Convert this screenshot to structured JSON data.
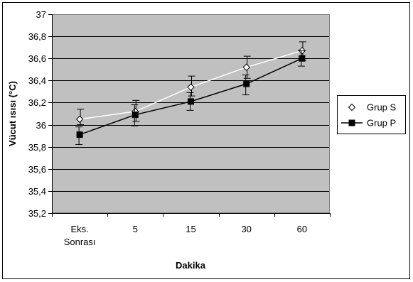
{
  "chart_data": {
    "type": "line",
    "categories": [
      [
        "Eks.",
        "Sonrası"
      ],
      [
        "5"
      ],
      [
        "15"
      ],
      [
        "30"
      ],
      [
        "60"
      ]
    ],
    "xlabel": "Dakika",
    "ylabel": "Vücut ısısı (°C)",
    "ylim": [
      35.2,
      37.0
    ],
    "ytick_step": 0.2,
    "yticks": [
      "35,2",
      "35,4",
      "35,6",
      "35,8",
      "36",
      "36,2",
      "36,4",
      "36,6",
      "36,8",
      "37"
    ],
    "grid": true,
    "legend": "right",
    "plot_bg_color": "#c0c0c0",
    "series": [
      {
        "name": "Grup S",
        "marker": "diamond-open",
        "line_color": "#ffffff",
        "values": [
          36.05,
          36.12,
          36.34,
          36.52,
          36.67
        ],
        "err_low": [
          36.0,
          36.03,
          36.26,
          36.42,
          36.58
        ],
        "err_high": [
          36.14,
          36.22,
          36.44,
          36.62,
          36.75
        ]
      },
      {
        "name": "Grup P",
        "marker": "square-filled",
        "line_color": "#000000",
        "values": [
          35.91,
          36.09,
          36.21,
          36.37,
          36.6
        ],
        "err_low": [
          35.82,
          35.99,
          36.13,
          36.27,
          36.53
        ],
        "err_high": [
          35.98,
          36.18,
          36.29,
          36.45,
          36.67
        ]
      }
    ]
  }
}
